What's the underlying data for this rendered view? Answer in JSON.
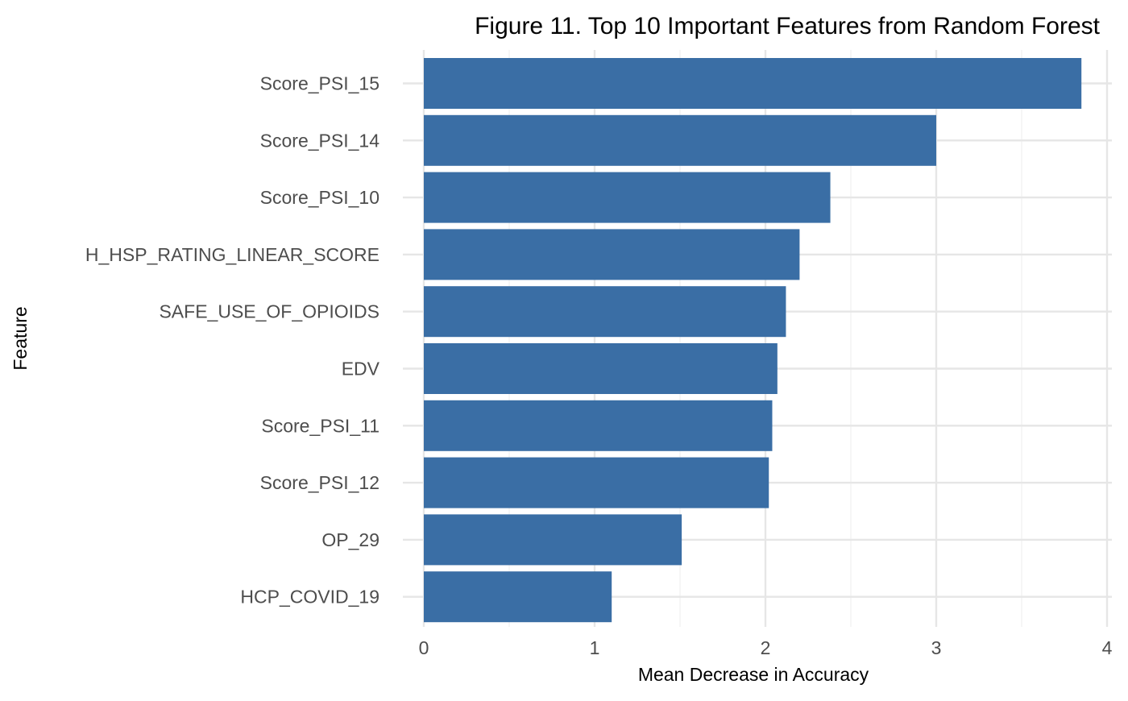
{
  "chart_data": {
    "type": "bar",
    "orientation": "horizontal",
    "title": "Figure 11. Top 10 Important Features from Random Forest",
    "xlabel": "Mean Decrease in Accuracy",
    "ylabel": "Feature",
    "categories": [
      "Score_PSI_15",
      "Score_PSI_14",
      "Score_PSI_10",
      "H_HSP_RATING_LINEAR_SCORE",
      "SAFE_USE_OF_OPIOIDS",
      "EDV",
      "Score_PSI_11",
      "Score_PSI_12",
      "OP_29",
      "HCP_COVID_19"
    ],
    "values": [
      3.85,
      3.0,
      2.38,
      2.2,
      2.12,
      2.07,
      2.04,
      2.02,
      1.51,
      1.1
    ],
    "xlim": [
      0,
      4.0
    ],
    "xticks": [
      0,
      1,
      2,
      3,
      4
    ],
    "grid": true,
    "legend": "none",
    "bar_color": "#3a6ea5"
  }
}
